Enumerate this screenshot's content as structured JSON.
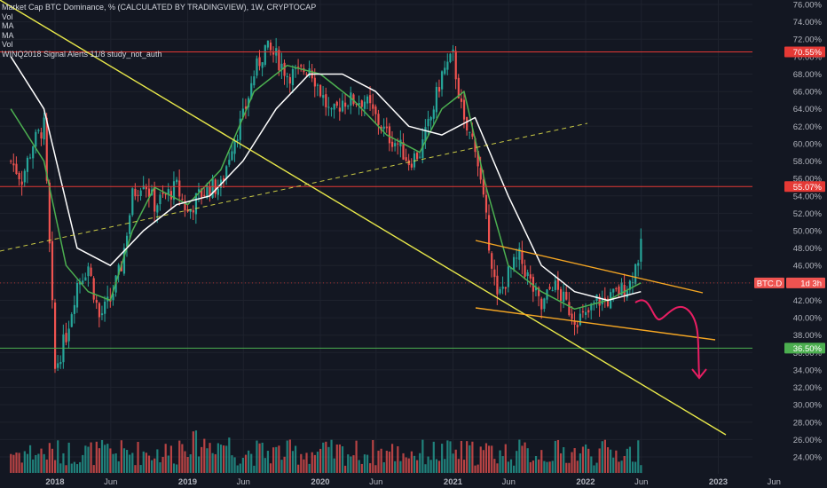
{
  "legend": {
    "title": "Market Cap BTC Dominance, % (CALCULATED BY TRADINGVIEW), 1W, CRYPTOCAP",
    "indicators": [
      "Vol",
      "MA",
      "MA",
      "Vol",
      "WINQ2018 Signal Alerts 11/8 study_not_auth"
    ]
  },
  "axis": {
    "y_ticks": [
      "76.00%",
      "74.00%",
      "72.00%",
      "70.00%",
      "68.00%",
      "66.00%",
      "64.00%",
      "62.00%",
      "60.00%",
      "58.00%",
      "56.00%",
      "54.00%",
      "52.00%",
      "50.00%",
      "48.00%",
      "46.00%",
      "44.00%",
      "42.00%",
      "40.00%",
      "38.00%",
      "36.00%",
      "34.00%",
      "32.00%",
      "30.00%",
      "28.00%",
      "26.00%",
      "24.00%"
    ],
    "x_ticks": [
      "2018",
      "Jun",
      "2019",
      "Jun",
      "2020",
      "Jun",
      "2021",
      "Jun",
      "2022",
      "Jun",
      "2023",
      "Jun"
    ]
  },
  "price_labels": {
    "resistance_top": "70.55%",
    "resistance_mid": "55.07%",
    "support": "36.50%",
    "current_symbol": "BTC.D",
    "current_timer": "1d 3h"
  },
  "colors": {
    "background": "#131722",
    "up": "#26a69a",
    "down": "#ef5350",
    "ma_fast": "#4caf50",
    "ma_slow": "#ffffff",
    "trendline": "#e8e84a",
    "channel": "#f5a623",
    "hline_red": "#e53935",
    "hline_green": "#4caf50",
    "arrow": "#e91e63"
  },
  "chart_data": {
    "type": "candlestick",
    "symbol": "BTC.D",
    "interval": "1W",
    "y_unit": "%",
    "ylim": [
      23,
      77
    ],
    "x_range": [
      "2017-09",
      "2023-08"
    ],
    "horizontal_levels": [
      {
        "value": 70.55,
        "color": "red"
      },
      {
        "value": 55.07,
        "color": "red"
      },
      {
        "value": 36.5,
        "color": "green"
      }
    ],
    "close_path": [
      {
        "t": "2017-09",
        "v": 58
      },
      {
        "t": "2017-10",
        "v": 56
      },
      {
        "t": "2017-11",
        "v": 60
      },
      {
        "t": "2017-12",
        "v": 62
      },
      {
        "t": "2018-01",
        "v": 34
      },
      {
        "t": "2018-02",
        "v": 38
      },
      {
        "t": "2018-03",
        "v": 44
      },
      {
        "t": "2018-04",
        "v": 46
      },
      {
        "t": "2018-05",
        "v": 40
      },
      {
        "t": "2018-06",
        "v": 42
      },
      {
        "t": "2018-07",
        "v": 46
      },
      {
        "t": "2018-08",
        "v": 54
      },
      {
        "t": "2018-09",
        "v": 56
      },
      {
        "t": "2018-10",
        "v": 53
      },
      {
        "t": "2018-11",
        "v": 54
      },
      {
        "t": "2018-12",
        "v": 55
      },
      {
        "t": "2019-01",
        "v": 52
      },
      {
        "t": "2019-02",
        "v": 54
      },
      {
        "t": "2019-03",
        "v": 55
      },
      {
        "t": "2019-04",
        "v": 55
      },
      {
        "t": "2019-05",
        "v": 60
      },
      {
        "t": "2019-06",
        "v": 63
      },
      {
        "t": "2019-07",
        "v": 68
      },
      {
        "t": "2019-08",
        "v": 71
      },
      {
        "t": "2019-09",
        "v": 70
      },
      {
        "t": "2019-10",
        "v": 68
      },
      {
        "t": "2019-11",
        "v": 68
      },
      {
        "t": "2019-12",
        "v": 69
      },
      {
        "t": "2020-01",
        "v": 66
      },
      {
        "t": "2020-02",
        "v": 63
      },
      {
        "t": "2020-03",
        "v": 65
      },
      {
        "t": "2020-04",
        "v": 65
      },
      {
        "t": "2020-05",
        "v": 65
      },
      {
        "t": "2020-06",
        "v": 63
      },
      {
        "t": "2020-07",
        "v": 61
      },
      {
        "t": "2020-08",
        "v": 60
      },
      {
        "t": "2020-09",
        "v": 58
      },
      {
        "t": "2020-10",
        "v": 59
      },
      {
        "t": "2020-11",
        "v": 63
      },
      {
        "t": "2020-12",
        "v": 68
      },
      {
        "t": "2021-01",
        "v": 70
      },
      {
        "t": "2021-02",
        "v": 62
      },
      {
        "t": "2021-03",
        "v": 60
      },
      {
        "t": "2021-04",
        "v": 51
      },
      {
        "t": "2021-05",
        "v": 42
      },
      {
        "t": "2021-06",
        "v": 45
      },
      {
        "t": "2021-07",
        "v": 47
      },
      {
        "t": "2021-08",
        "v": 44
      },
      {
        "t": "2021-09",
        "v": 41
      },
      {
        "t": "2021-10",
        "v": 44
      },
      {
        "t": "2021-11",
        "v": 42
      },
      {
        "t": "2021-12",
        "v": 40
      },
      {
        "t": "2022-01",
        "v": 40
      },
      {
        "t": "2022-02",
        "v": 42
      },
      {
        "t": "2022-03",
        "v": 42
      },
      {
        "t": "2022-04",
        "v": 43
      },
      {
        "t": "2022-05",
        "v": 44
      },
      {
        "t": "2022-06",
        "v": 48
      },
      {
        "t": "2022-06",
        "v": 44
      }
    ],
    "ma_fast_path": [
      {
        "t": "2017-09",
        "v": 64
      },
      {
        "t": "2017-12",
        "v": 58
      },
      {
        "t": "2018-02",
        "v": 46
      },
      {
        "t": "2018-04",
        "v": 43
      },
      {
        "t": "2018-06",
        "v": 42
      },
      {
        "t": "2018-08",
        "v": 50
      },
      {
        "t": "2018-10",
        "v": 55
      },
      {
        "t": "2019-01",
        "v": 53
      },
      {
        "t": "2019-04",
        "v": 57
      },
      {
        "t": "2019-07",
        "v": 66
      },
      {
        "t": "2019-10",
        "v": 69
      },
      {
        "t": "2020-01",
        "v": 68
      },
      {
        "t": "2020-04",
        "v": 65
      },
      {
        "t": "2020-07",
        "v": 61
      },
      {
        "t": "2020-10",
        "v": 59
      },
      {
        "t": "2020-12",
        "v": 64
      },
      {
        "t": "2021-02",
        "v": 66
      },
      {
        "t": "2021-04",
        "v": 55
      },
      {
        "t": "2021-06",
        "v": 46
      },
      {
        "t": "2021-09",
        "v": 43
      },
      {
        "t": "2021-12",
        "v": 41
      },
      {
        "t": "2022-03",
        "v": 42
      },
      {
        "t": "2022-06",
        "v": 44
      }
    ],
    "ma_slow_path": [
      {
        "t": "2017-09",
        "v": 70
      },
      {
        "t": "2017-12",
        "v": 64
      },
      {
        "t": "2018-03",
        "v": 48
      },
      {
        "t": "2018-06",
        "v": 46
      },
      {
        "t": "2018-09",
        "v": 50
      },
      {
        "t": "2018-12",
        "v": 53
      },
      {
        "t": "2019-03",
        "v": 54
      },
      {
        "t": "2019-06",
        "v": 58
      },
      {
        "t": "2019-09",
        "v": 64
      },
      {
        "t": "2019-12",
        "v": 68
      },
      {
        "t": "2020-03",
        "v": 68
      },
      {
        "t": "2020-06",
        "v": 66
      },
      {
        "t": "2020-09",
        "v": 62
      },
      {
        "t": "2020-12",
        "v": 61
      },
      {
        "t": "2021-03",
        "v": 63
      },
      {
        "t": "2021-06",
        "v": 54
      },
      {
        "t": "2021-09",
        "v": 46
      },
      {
        "t": "2021-12",
        "v": 43
      },
      {
        "t": "2022-03",
        "v": 42
      },
      {
        "t": "2022-06",
        "v": 43
      }
    ]
  }
}
